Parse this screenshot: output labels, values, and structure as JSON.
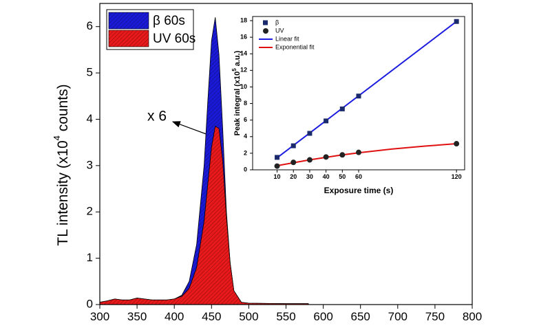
{
  "chart_data": [
    {
      "type": "area",
      "y_label_parts": [
        "TL intensity (x10",
        "4",
        " counts)"
      ],
      "annotation": "x 6",
      "x": [
        300,
        310,
        320,
        330,
        340,
        350,
        360,
        370,
        380,
        390,
        400,
        410,
        420,
        430,
        440,
        445,
        450,
        455,
        460,
        465,
        470,
        475,
        480,
        490,
        500,
        550,
        580
      ],
      "series": [
        {
          "name": "β 60s",
          "color": "#1a1ad6",
          "values": [
            0.05,
            0.08,
            0.12,
            0.1,
            0.1,
            0.14,
            0.12,
            0.1,
            0.1,
            0.1,
            0.12,
            0.2,
            0.5,
            1.3,
            3.0,
            4.4,
            5.7,
            6.2,
            5.4,
            3.8,
            2.0,
            0.9,
            0.3,
            0.05,
            0.03,
            0.02,
            0.02
          ]
        },
        {
          "name": "UV 60s",
          "color": "#e8191b",
          "values": [
            0.05,
            0.08,
            0.12,
            0.1,
            0.1,
            0.14,
            0.12,
            0.1,
            0.1,
            0.1,
            0.12,
            0.18,
            0.35,
            0.8,
            1.8,
            2.6,
            3.4,
            3.85,
            3.8,
            3.1,
            1.9,
            0.9,
            0.3,
            0.05,
            0.03,
            0.02,
            0.02
          ]
        }
      ],
      "xlim": [
        300,
        800
      ],
      "xticks": [
        300,
        350,
        400,
        450,
        500,
        550,
        600,
        650,
        700,
        750,
        800
      ],
      "ylim": [
        0,
        6.5
      ],
      "yticks": [
        0,
        1,
        2,
        3,
        4,
        5,
        6
      ],
      "hatch": true
    },
    {
      "type": "scatter",
      "x_label": "Exposure time (s)",
      "y_label_parts": [
        "Peak integral (x10",
        "5",
        " a.u.)"
      ],
      "series": [
        {
          "name": "β",
          "color": "#1a2a6c",
          "kind": "square",
          "x": [
            10,
            20,
            30,
            40,
            50,
            60,
            120
          ],
          "values": [
            1.5,
            2.9,
            4.4,
            5.9,
            7.35,
            8.9,
            17.9
          ]
        },
        {
          "name": "UV",
          "color": "#222222",
          "kind": "circle",
          "x": [
            10,
            20,
            30,
            40,
            50,
            60,
            120
          ],
          "values": [
            0.45,
            0.9,
            1.2,
            1.55,
            1.8,
            2.1,
            3.15
          ]
        },
        {
          "name": "Linear fit",
          "color": "#1c1ce0",
          "kind": "line",
          "x": [
            10,
            120
          ],
          "values": [
            1.45,
            17.9
          ]
        },
        {
          "name": "Exponential fit",
          "color": "#e01010",
          "kind": "line",
          "x": [
            10,
            20,
            30,
            40,
            50,
            60,
            80,
            100,
            120
          ],
          "values": [
            0.5,
            0.85,
            1.2,
            1.5,
            1.8,
            2.05,
            2.5,
            2.85,
            3.15
          ]
        }
      ],
      "xlim": [
        -5,
        125
      ],
      "xticks": [
        10,
        20,
        30,
        40,
        50,
        60,
        120
      ],
      "ylim": [
        0,
        18.5
      ],
      "yticks": [
        0,
        2,
        4,
        6,
        8,
        10,
        12,
        14,
        16,
        18
      ]
    }
  ]
}
